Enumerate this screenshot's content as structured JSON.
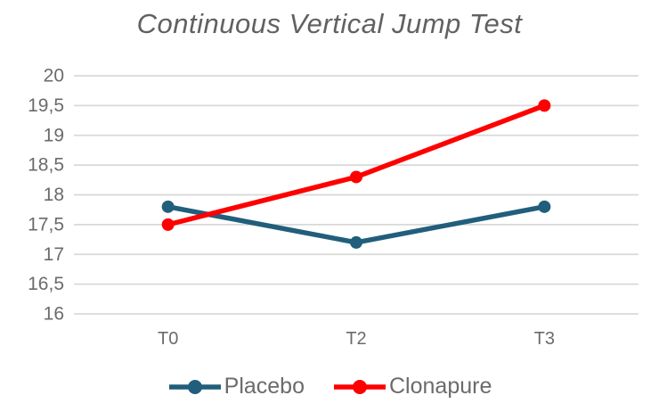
{
  "chart_data": {
    "type": "line",
    "title": "Continuous Vertical Jump Test",
    "categories": [
      "T0",
      "T2",
      "T3"
    ],
    "series": [
      {
        "name": "Placebo",
        "color": "#215E7C",
        "values": [
          17.8,
          17.2,
          17.8
        ]
      },
      {
        "name": "Clonapure",
        "color": "#FF0000",
        "values": [
          17.5,
          18.3,
          19.5
        ]
      }
    ],
    "ylim": [
      16,
      20
    ],
    "ytick_step": 0.5,
    "ytick_labels": [
      "16",
      "16,5",
      "17",
      "17,5",
      "18",
      "18,5",
      "19",
      "19,5",
      "20"
    ],
    "xlabel": "",
    "ylabel": "",
    "grid": true,
    "legend_position": "bottom"
  },
  "colors": {
    "background": "#FFFFFF",
    "grid": "#D9D9D9",
    "axis_text": "#6B6B6B",
    "title_text": "#616161"
  }
}
